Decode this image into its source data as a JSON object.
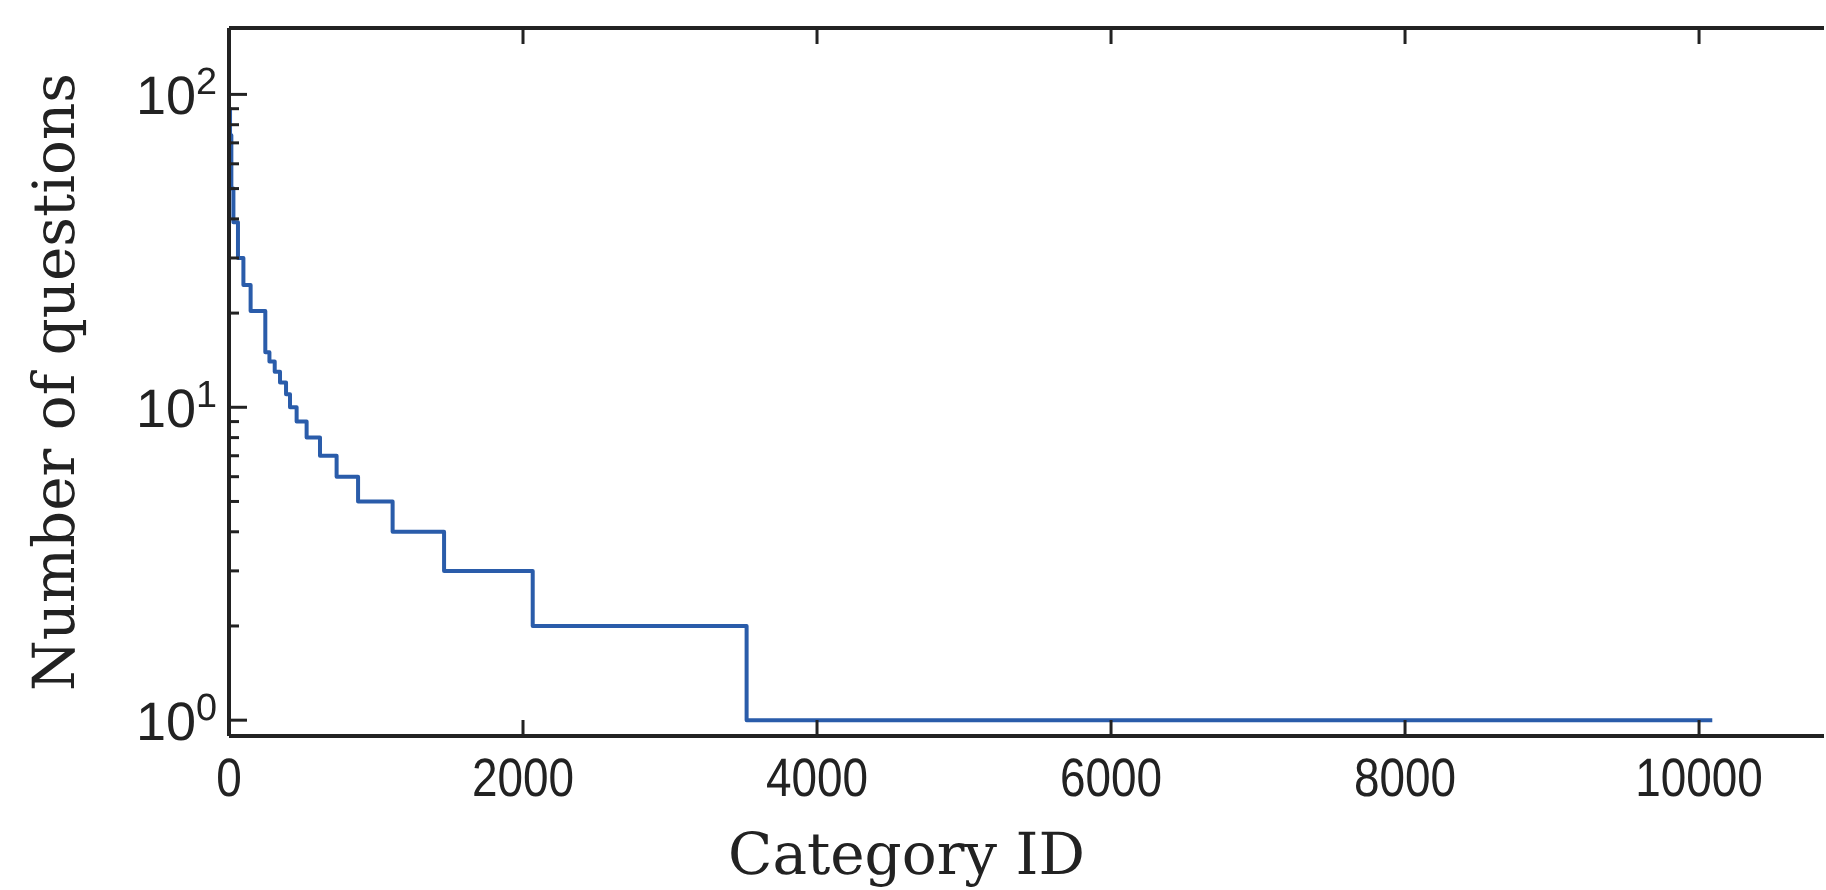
{
  "chart_data": {
    "type": "step",
    "xlabel": "Category ID",
    "ylabel": "Number of questions",
    "log": "y",
    "grid": false,
    "marker": "none",
    "line_style": "solid",
    "xlim": [
      0,
      10850
    ],
    "xticks": [
      0,
      2000,
      4000,
      6000,
      8000,
      10000
    ],
    "ylim": [
      0.89,
      163
    ],
    "yticks": [
      {
        "value": 1,
        "label": "10$^{0}$"
      },
      {
        "value": 2,
        "label": null
      },
      {
        "value": 3,
        "label": null
      },
      {
        "value": 4,
        "label": null
      },
      {
        "value": 5,
        "label": null
      },
      {
        "value": 6,
        "label": null
      },
      {
        "value": 7,
        "label": null
      },
      {
        "value": 8,
        "label": null
      },
      {
        "value": 9,
        "label": null
      },
      {
        "value": 10,
        "label": "10$^{1}$"
      },
      {
        "value": 20,
        "label": null
      },
      {
        "value": 30,
        "label": null
      },
      {
        "value": 40,
        "label": null
      },
      {
        "value": 50,
        "label": null
      },
      {
        "value": 60,
        "label": null
      },
      {
        "value": 70,
        "label": null
      },
      {
        "value": 80,
        "label": null
      },
      {
        "value": 90,
        "label": null
      },
      {
        "value": 100,
        "label": "10$^{2}$"
      }
    ],
    "series": [
      {
        "color": "#2a5caa",
        "x": [
          1,
          7,
          16,
          30,
          61,
          98,
          147,
          247,
          275,
          311,
          347,
          388,
          415,
          460,
          528,
          619,
          732,
          878,
          1113,
          1463,
          2066,
          3521,
          10090
        ],
        "values": [
          90,
          74,
          50,
          39,
          30,
          24.6,
          20.3,
          15,
          14,
          13,
          12,
          11,
          10,
          9,
          8,
          7,
          6,
          5,
          4,
          3,
          2,
          1,
          1
        ]
      }
    ]
  }
}
